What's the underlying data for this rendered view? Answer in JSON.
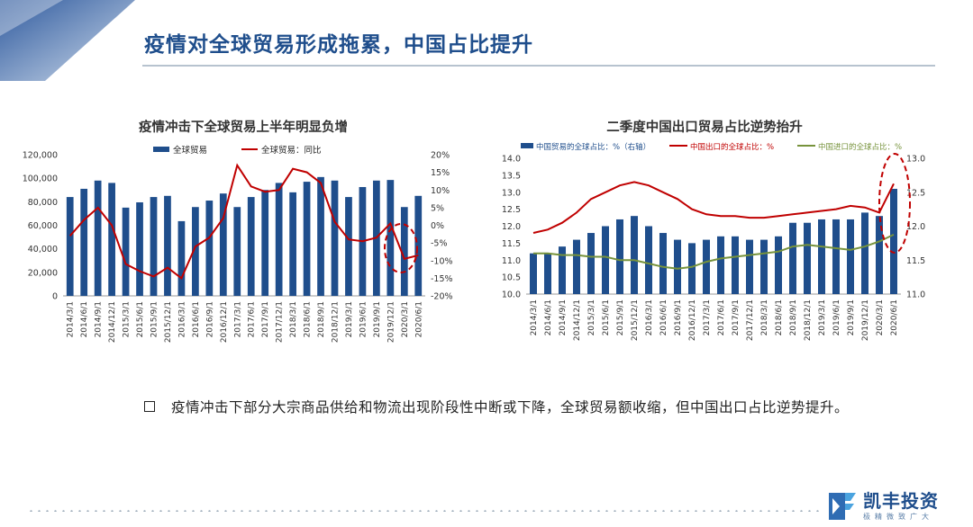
{
  "header": {
    "title": "疫情对全球贸易形成拖累，中国占比提升",
    "accent_color": "#1f4e8c"
  },
  "bullet": {
    "text": "疫情冲击下部分大宗商品供给和物流出现阶段性中断或下降，全球贸易额收缩，但中国出口占比逆势提升。"
  },
  "footer": {
    "logo_name": "凯丰投资",
    "logo_slogan": "极精微致广大"
  },
  "chart_data": [
    {
      "type": "bar",
      "title": "疫情冲击下全球贸易上半年明显负增",
      "categories": [
        "2014/3/1",
        "2014/6/1",
        "2014/9/1",
        "2014/12/1",
        "2015/3/1",
        "2015/6/1",
        "2015/9/1",
        "2015/12/1",
        "2016/3/1",
        "2016/6/1",
        "2016/9/1",
        "2016/12/1",
        "2017/3/1",
        "2017/6/1",
        "2017/9/1",
        "2017/12/1",
        "2018/3/1",
        "2018/6/1",
        "2018/9/1",
        "2018/12/1",
        "2019/3/1",
        "2019/6/1",
        "2019/9/1",
        "2019/12/1",
        "2020/3/1",
        "2020/6/1"
      ],
      "x_tick_labels": [
        "2014/3/1",
        "2014/6/1",
        "2014/9/1",
        "2014/12/1",
        "2015/3/1",
        "2015/6/1",
        "2015/9/1",
        "2015/12/1",
        "2016/3/1",
        "2016/6/1",
        "2016/9/1",
        "2016/12/1",
        "2017/3/1",
        "2017/6/1",
        "2017/9/1",
        "2017/12/1",
        "2018/3/1",
        "2018/6/1",
        "2018/9/1",
        "2018/12/1",
        "2019/3/1",
        "2019/6/1",
        "2019/9/1",
        "2019/12/1",
        "2020/3/1",
        "2020/6/1"
      ],
      "series": [
        {
          "name": "全球贸易",
          "kind": "bar",
          "axis": "left",
          "color": "#1f4e8c",
          "values": [
            84000,
            91000,
            98000,
            96000,
            75000,
            79500,
            84000,
            85000,
            63500,
            75500,
            81000,
            87000,
            75500,
            84000,
            90000,
            96000,
            88000,
            97000,
            101000,
            98000,
            84000,
            92500,
            98000,
            98500,
            75500,
            85000
          ]
        },
        {
          "name": "全球贸易：同比",
          "kind": "line",
          "axis": "right",
          "color": "#c00000",
          "values": [
            -3,
            1.5,
            5,
            0,
            -11,
            -13,
            -14.5,
            -12,
            -15,
            -6,
            -3.5,
            2,
            17,
            11,
            9.5,
            10,
            16,
            15,
            12,
            1,
            -4,
            -4.5,
            -3.5,
            0.5,
            -9.5,
            -8.5
          ]
        }
      ],
      "ylim_left": [
        0,
        120000
      ],
      "yticks_left": [
        "0",
        "20,000",
        "40,000",
        "60,000",
        "80,000",
        "100,000",
        "120,000"
      ],
      "ylim_right": [
        -20,
        20
      ],
      "yticks_right": [
        "-20%",
        "-15%",
        "-10%",
        "-5%",
        "0%",
        "5%",
        "10%",
        "15%",
        "20%"
      ],
      "annotation": "dashed red ellipse around 2020 values"
    },
    {
      "type": "bar",
      "title": "二季度中国出口贸易占比逆势抬升",
      "categories": [
        "2014/3/1",
        "2014/6/1",
        "2014/9/1",
        "2014/12/1",
        "2015/3/1",
        "2015/6/1",
        "2015/9/1",
        "2015/12/1",
        "2016/3/1",
        "2016/6/1",
        "2016/9/1",
        "2016/12/1",
        "2017/3/1",
        "2017/6/1",
        "2017/9/1",
        "2017/12/1",
        "2018/3/1",
        "2018/6/1",
        "2018/9/1",
        "2018/12/1",
        "2019/3/1",
        "2019/6/1",
        "2019/9/1",
        "2019/12/1",
        "2020/3/1",
        "2020/6/1"
      ],
      "x_tick_labels": [
        "2014/3/1",
        "2014/6/1",
        "2014/9/1",
        "2014/12/1",
        "2015/3/1",
        "2015/6/1",
        "2015/9/1",
        "2015/12/1",
        "2016/3/1",
        "2016/6/1",
        "2016/9/1",
        "2016/12/1",
        "2017/3/1",
        "2017/6/1",
        "2017/9/1",
        "2017/12/1",
        "2018/3/1",
        "2018/6/1",
        "2018/9/1",
        "2018/12/1",
        "2019/3/1",
        "2019/6/1",
        "2019/9/1",
        "2019/12/1",
        "2020/3/1",
        "2020/6/1"
      ],
      "series": [
        {
          "name": "中国贸易的全球占比：%（右轴）",
          "kind": "bar",
          "axis": "right",
          "color": "#1f4e8c",
          "values": [
            11.6,
            11.6,
            11.7,
            11.8,
            11.9,
            12.0,
            12.1,
            12.15,
            12.0,
            11.9,
            11.8,
            11.75,
            11.8,
            11.85,
            11.85,
            11.8,
            11.8,
            11.85,
            12.05,
            12.05,
            12.1,
            12.1,
            12.1,
            12.2,
            12.15,
            12.55
          ]
        },
        {
          "name": "中国出口的全球占比：%",
          "kind": "line",
          "axis": "left",
          "color": "#c00000",
          "values": [
            11.8,
            11.9,
            12.1,
            12.4,
            12.8,
            13.0,
            13.2,
            13.3,
            13.2,
            13.0,
            12.8,
            12.5,
            12.35,
            12.3,
            12.3,
            12.25,
            12.25,
            12.3,
            12.35,
            12.4,
            12.45,
            12.5,
            12.6,
            12.55,
            12.4,
            13.25
          ]
        },
        {
          "name": "中国进口的全球占比：%",
          "kind": "line",
          "axis": "left",
          "color": "#77933c",
          "values": [
            11.2,
            11.2,
            11.15,
            11.15,
            11.1,
            11.1,
            11.0,
            11.0,
            10.9,
            10.8,
            10.75,
            10.8,
            10.95,
            11.05,
            11.1,
            11.15,
            11.2,
            11.25,
            11.4,
            11.45,
            11.4,
            11.35,
            11.3,
            11.4,
            11.55,
            11.75
          ]
        }
      ],
      "ylim_left": [
        10.0,
        14.0
      ],
      "yticks_left": [
        "10.0",
        "10.5",
        "11.0",
        "11.5",
        "12.0",
        "12.5",
        "13.0",
        "13.5",
        "14.0"
      ],
      "ylim_right": [
        11.0,
        13.0
      ],
      "yticks_right": [
        "11.0",
        "11.5",
        "12.0",
        "12.5",
        "13.0"
      ],
      "annotation": "dashed red ellipse around 2020/6/1 values"
    }
  ]
}
